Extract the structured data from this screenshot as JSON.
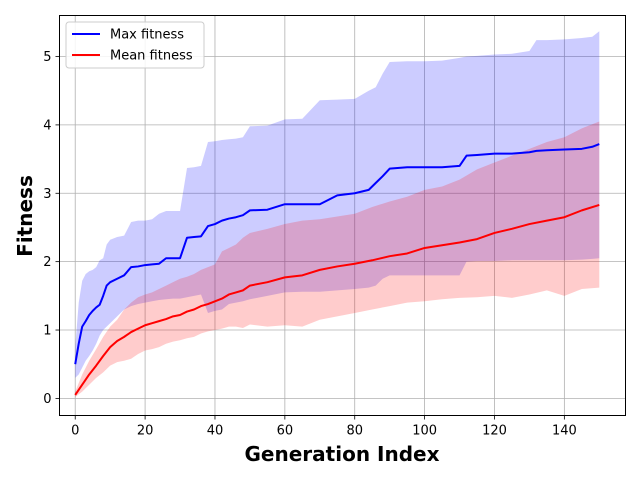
{
  "chart_data": {
    "type": "line",
    "title": "",
    "xlabel": "Generation Index",
    "ylabel": "Fitness",
    "xlim": [
      -4.5,
      157.5
    ],
    "ylim": [
      -0.25,
      5.6
    ],
    "xticks": [
      0,
      20,
      40,
      60,
      80,
      100,
      120,
      140
    ],
    "yticks": [
      0,
      1,
      2,
      3,
      4,
      5
    ],
    "grid": true,
    "legend_position": "top-left",
    "series": [
      {
        "name": "Max fitness",
        "color": "#0000ff",
        "band_color": "#0000ff",
        "x": [
          0,
          1,
          2,
          3,
          4,
          5,
          6,
          7,
          8,
          9,
          10,
          12,
          14,
          16,
          18,
          20,
          22,
          24,
          26,
          28,
          30,
          32,
          34,
          36,
          38,
          40,
          42,
          44,
          46,
          48,
          50,
          55,
          60,
          65,
          70,
          75,
          80,
          84,
          86,
          88,
          90,
          95,
          100,
          105,
          110,
          112,
          115,
          120,
          125,
          130,
          132,
          135,
          140,
          145,
          148,
          150
        ],
        "values": [
          0.5,
          0.8,
          1.05,
          1.13,
          1.22,
          1.28,
          1.33,
          1.37,
          1.5,
          1.65,
          1.7,
          1.75,
          1.8,
          1.92,
          1.93,
          1.95,
          1.96,
          1.97,
          2.05,
          2.05,
          2.05,
          2.35,
          2.36,
          2.37,
          2.52,
          2.55,
          2.6,
          2.63,
          2.65,
          2.68,
          2.75,
          2.76,
          2.84,
          2.84,
          2.84,
          2.97,
          3.0,
          3.05,
          3.15,
          3.25,
          3.36,
          3.38,
          3.38,
          3.38,
          3.4,
          3.55,
          3.56,
          3.58,
          3.58,
          3.6,
          3.62,
          3.63,
          3.64,
          3.65,
          3.68,
          3.72
        ],
        "band_upper": [
          0.75,
          1.4,
          1.72,
          1.82,
          1.86,
          1.88,
          1.92,
          2.02,
          2.05,
          2.25,
          2.32,
          2.36,
          2.38,
          2.58,
          2.6,
          2.6,
          2.62,
          2.7,
          2.74,
          2.74,
          2.74,
          3.37,
          3.38,
          3.4,
          3.75,
          3.76,
          3.78,
          3.79,
          3.8,
          3.82,
          3.98,
          3.99,
          4.08,
          4.09,
          4.36,
          4.37,
          4.38,
          4.5,
          4.55,
          4.75,
          4.92,
          4.93,
          4.93,
          4.94,
          4.98,
          5.0,
          5.01,
          5.03,
          5.04,
          5.08,
          5.24,
          5.24,
          5.25,
          5.27,
          5.29,
          5.37
        ],
        "band_lower": [
          0.3,
          0.35,
          0.45,
          0.55,
          0.62,
          0.7,
          0.8,
          0.92,
          1.0,
          1.05,
          1.1,
          1.2,
          1.3,
          1.35,
          1.38,
          1.4,
          1.42,
          1.44,
          1.45,
          1.46,
          1.46,
          1.48,
          1.5,
          1.52,
          1.25,
          1.28,
          1.3,
          1.38,
          1.4,
          1.42,
          1.45,
          1.5,
          1.55,
          1.56,
          1.56,
          1.58,
          1.6,
          1.62,
          1.65,
          1.75,
          1.8,
          1.8,
          1.8,
          1.8,
          1.8,
          2.0,
          2.01,
          2.01,
          2.02,
          2.02,
          2.02,
          2.02,
          2.02,
          2.03,
          2.04,
          2.05
        ]
      },
      {
        "name": "Mean fitness",
        "color": "#ff0000",
        "band_color": "#ff0000",
        "x": [
          0,
          2,
          4,
          6,
          8,
          10,
          12,
          14,
          16,
          18,
          20,
          22,
          24,
          26,
          28,
          30,
          32,
          34,
          36,
          38,
          40,
          42,
          44,
          46,
          48,
          50,
          55,
          60,
          65,
          70,
          75,
          80,
          85,
          90,
          95,
          100,
          105,
          110,
          115,
          120,
          125,
          130,
          135,
          140,
          145,
          150
        ],
        "values": [
          0.05,
          0.2,
          0.35,
          0.48,
          0.62,
          0.75,
          0.84,
          0.9,
          0.97,
          1.02,
          1.07,
          1.1,
          1.13,
          1.16,
          1.2,
          1.22,
          1.27,
          1.3,
          1.35,
          1.38,
          1.42,
          1.46,
          1.52,
          1.55,
          1.58,
          1.65,
          1.7,
          1.77,
          1.8,
          1.88,
          1.93,
          1.97,
          2.02,
          2.08,
          2.12,
          2.2,
          2.24,
          2.28,
          2.33,
          2.42,
          2.48,
          2.55,
          2.6,
          2.65,
          2.75,
          2.83
        ],
        "band_upper": [
          0.1,
          0.35,
          0.55,
          0.72,
          0.9,
          1.05,
          1.15,
          1.3,
          1.4,
          1.48,
          1.52,
          1.55,
          1.6,
          1.65,
          1.7,
          1.75,
          1.78,
          1.82,
          1.88,
          1.92,
          1.96,
          2.15,
          2.2,
          2.25,
          2.35,
          2.42,
          2.48,
          2.55,
          2.6,
          2.62,
          2.66,
          2.7,
          2.8,
          2.88,
          2.95,
          3.05,
          3.1,
          3.2,
          3.35,
          3.45,
          3.55,
          3.65,
          3.75,
          3.82,
          3.95,
          4.05
        ],
        "band_lower": [
          0.02,
          0.1,
          0.2,
          0.3,
          0.38,
          0.48,
          0.53,
          0.55,
          0.58,
          0.65,
          0.7,
          0.72,
          0.75,
          0.8,
          0.83,
          0.85,
          0.88,
          0.9,
          0.95,
          0.98,
          1.0,
          1.02,
          1.05,
          1.05,
          1.03,
          1.08,
          1.05,
          1.07,
          1.05,
          1.15,
          1.2,
          1.25,
          1.3,
          1.35,
          1.4,
          1.42,
          1.45,
          1.47,
          1.48,
          1.5,
          1.47,
          1.52,
          1.58,
          1.5,
          1.6,
          1.62
        ]
      }
    ]
  }
}
